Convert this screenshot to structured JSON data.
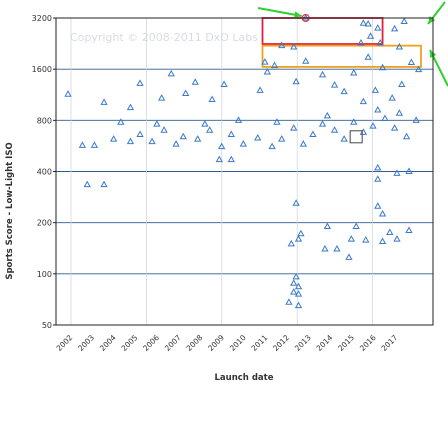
{
  "chart_data": {
    "type": "scatter",
    "title": "",
    "watermark": "Copyright © 2008-2011 DxO Labs",
    "xlabel": "Launch date",
    "ylabel": "Sports Score - Low-Light ISO",
    "y_scale": "log",
    "ylim": [
      50,
      3200
    ],
    "yticks": [
      50,
      100,
      200,
      400,
      800,
      1600,
      3200
    ],
    "x_tick_labels": [
      "2002",
      "2003",
      "2004",
      "2005",
      "2006",
      "2007",
      "2008",
      "2009",
      "2010",
      "2011",
      "2012",
      "2013",
      "2014",
      "2015",
      "2016",
      "2017"
    ],
    "xlim": [
      2001.8,
      2017.5
    ],
    "grid": "horizontal",
    "colors": {
      "marker": "#3b7ac9",
      "gridline": "#2e5c8f",
      "axis": "#222222",
      "highlight_red": "#e02040",
      "highlight_orange": "#f0a020",
      "arrow": "#30d030",
      "circle": "#e04050"
    },
    "highlights": [
      {
        "color": "red",
        "x": [
          2010.4,
          2015.4
        ],
        "y": [
          2250,
          3200
        ]
      },
      {
        "color": "orange",
        "x": [
          2010.4,
          2017.0
        ],
        "y": [
          1650,
          2200
        ]
      }
    ],
    "points": [
      {
        "x": 2002.3,
        "y": 1140
      },
      {
        "x": 2003.8,
        "y": 1020
      },
      {
        "x": 2004.9,
        "y": 950
      },
      {
        "x": 2005.3,
        "y": 1320
      },
      {
        "x": 2006.2,
        "y": 1080
      },
      {
        "x": 2006.6,
        "y": 1500
      },
      {
        "x": 2007.2,
        "y": 1150
      },
      {
        "x": 2007.6,
        "y": 1340
      },
      {
        "x": 2008.3,
        "y": 1060
      },
      {
        "x": 2008.8,
        "y": 1300
      },
      {
        "x": 2010.3,
        "y": 1200
      },
      {
        "x": 2010.6,
        "y": 1540
      },
      {
        "x": 2010.9,
        "y": 1680
      },
      {
        "x": 2011.8,
        "y": 1350
      },
      {
        "x": 2012.2,
        "y": 1780
      },
      {
        "x": 2012.9,
        "y": 1480
      },
      {
        "x": 2013.4,
        "y": 1290
      },
      {
        "x": 2013.8,
        "y": 1180
      },
      {
        "x": 2014.2,
        "y": 1520
      },
      {
        "x": 2014.6,
        "y": 1030
      },
      {
        "x": 2015.1,
        "y": 1200
      },
      {
        "x": 2015.4,
        "y": 1630
      },
      {
        "x": 2015.8,
        "y": 1080
      },
      {
        "x": 2016.2,
        "y": 1300
      },
      {
        "x": 2011.2,
        "y": 2200
      },
      {
        "x": 2011.7,
        "y": 2160
      },
      {
        "x": 2010.5,
        "y": 1760
      },
      {
        "x": 2014.8,
        "y": 1880
      },
      {
        "x": 2016.6,
        "y": 1750
      },
      {
        "x": 2016.9,
        "y": 1590
      },
      {
        "x": 2016.1,
        "y": 2160
      },
      {
        "x": 2014.6,
        "y": 2980
      },
      {
        "x": 2014.8,
        "y": 2950
      },
      {
        "x": 2015.2,
        "y": 2790
      },
      {
        "x": 2014.9,
        "y": 2500
      },
      {
        "x": 2014.5,
        "y": 2280
      },
      {
        "x": 2015.3,
        "y": 2280
      },
      {
        "x": 2016.3,
        "y": 3050
      },
      {
        "x": 2015.9,
        "y": 2760
      },
      {
        "x": 2012.2,
        "y": 3200
      },
      {
        "x": 2002.9,
        "y": 570
      },
      {
        "x": 2003.4,
        "y": 570
      },
      {
        "x": 2004.2,
        "y": 620
      },
      {
        "x": 2004.9,
        "y": 600
      },
      {
        "x": 2005.3,
        "y": 660
      },
      {
        "x": 2005.8,
        "y": 600
      },
      {
        "x": 2006.3,
        "y": 700
      },
      {
        "x": 2006.8,
        "y": 580
      },
      {
        "x": 2007.1,
        "y": 640
      },
      {
        "x": 2007.7,
        "y": 620
      },
      {
        "x": 2008.2,
        "y": 700
      },
      {
        "x": 2008.7,
        "y": 560
      },
      {
        "x": 2009.1,
        "y": 660
      },
      {
        "x": 2009.6,
        "y": 580
      },
      {
        "x": 2010.2,
        "y": 630
      },
      {
        "x": 2010.8,
        "y": 560
      },
      {
        "x": 2011.2,
        "y": 620
      },
      {
        "x": 2011.7,
        "y": 720
      },
      {
        "x": 2012.1,
        "y": 580
      },
      {
        "x": 2012.5,
        "y": 660
      },
      {
        "x": 2012.9,
        "y": 760
      },
      {
        "x": 2013.4,
        "y": 700
      },
      {
        "x": 2013.8,
        "y": 620
      },
      {
        "x": 2014.2,
        "y": 780
      },
      {
        "x": 2014.6,
        "y": 680
      },
      {
        "x": 2015.0,
        "y": 740
      },
      {
        "x": 2015.5,
        "y": 820
      },
      {
        "x": 2015.9,
        "y": 720
      },
      {
        "x": 2016.4,
        "y": 640
      },
      {
        "x": 2016.8,
        "y": 800
      },
      {
        "x": 2016.1,
        "y": 880
      },
      {
        "x": 2015.2,
        "y": 920
      },
      {
        "x": 2013.1,
        "y": 850
      },
      {
        "x": 2011.0,
        "y": 780
      },
      {
        "x": 2009.4,
        "y": 800
      },
      {
        "x": 2008.0,
        "y": 760
      },
      {
        "x": 2006.0,
        "y": 760
      },
      {
        "x": 2004.5,
        "y": 780
      },
      {
        "x": 2003.1,
        "y": 335
      },
      {
        "x": 2003.8,
        "y": 335
      },
      {
        "x": 2008.6,
        "y": 470
      },
      {
        "x": 2009.1,
        "y": 470
      },
      {
        "x": 2016.0,
        "y": 390
      },
      {
        "x": 2016.5,
        "y": 400
      },
      {
        "x": 2015.2,
        "y": 420
      },
      {
        "x": 2015.2,
        "y": 360
      },
      {
        "x": 2011.8,
        "y": 260
      },
      {
        "x": 2015.2,
        "y": 250
      },
      {
        "x": 2015.4,
        "y": 225
      },
      {
        "x": 2014.3,
        "y": 190
      },
      {
        "x": 2015.7,
        "y": 175
      },
      {
        "x": 2016.5,
        "y": 180
      },
      {
        "x": 2013.1,
        "y": 190
      },
      {
        "x": 2014.1,
        "y": 160
      },
      {
        "x": 2014.7,
        "y": 158
      },
      {
        "x": 2015.4,
        "y": 155
      },
      {
        "x": 2016.0,
        "y": 160
      },
      {
        "x": 2011.6,
        "y": 150
      },
      {
        "x": 2011.9,
        "y": 160
      },
      {
        "x": 2013.0,
        "y": 140
      },
      {
        "x": 2013.5,
        "y": 140
      },
      {
        "x": 2014.0,
        "y": 125
      },
      {
        "x": 2012.0,
        "y": 172
      },
      {
        "x": 2011.8,
        "y": 96
      },
      {
        "x": 2011.7,
        "y": 88
      },
      {
        "x": 2011.9,
        "y": 84
      },
      {
        "x": 2011.7,
        "y": 78
      },
      {
        "x": 2011.9,
        "y": 76
      },
      {
        "x": 2011.5,
        "y": 68
      },
      {
        "x": 2011.9,
        "y": 65
      }
    ],
    "circled_points": [
      {
        "x": 2012.2,
        "y": 3200
      }
    ],
    "boxed_points": [
      {
        "x": 2014.3,
        "y": 640
      }
    ]
  }
}
